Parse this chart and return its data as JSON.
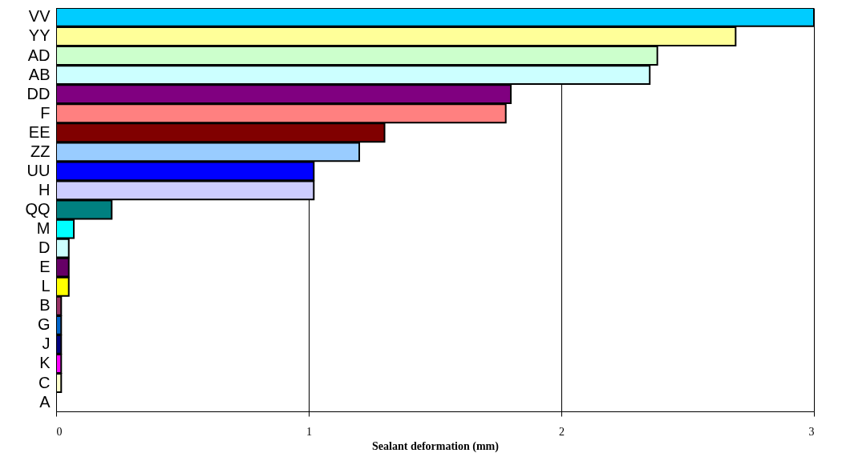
{
  "chart_data": {
    "type": "bar",
    "orientation": "horizontal",
    "xlabel": "Sealant deformation (mm)",
    "categories": [
      "VV",
      "YY",
      "AD",
      "AB",
      "DD",
      "F",
      "EE",
      "ZZ",
      "UU",
      "H",
      "QQ",
      "M",
      "D",
      "E",
      "L",
      "B",
      "G",
      "J",
      "K",
      "C",
      "A"
    ],
    "values": [
      3.0,
      2.69,
      2.38,
      2.35,
      1.8,
      1.78,
      1.3,
      1.2,
      1.02,
      1.02,
      0.22,
      0.07,
      0.05,
      0.05,
      0.05,
      0.02,
      0.02,
      0.02,
      0.02,
      0.02,
      0
    ],
    "colors": [
      "#00ccff",
      "#ffff99",
      "#ccffcc",
      "#ccffff",
      "#800080",
      "#ff8080",
      "#800000",
      "#99ccff",
      "#0000ff",
      "#ccccff",
      "#008080",
      "#00ffff",
      "#ccffff",
      "#660066",
      "#ffff00",
      "#993366",
      "#0066cc",
      "#000080",
      "#ff00ff",
      "#ffffcc",
      "#9999ff"
    ],
    "xlim": [
      0,
      3
    ],
    "xticks": [
      0,
      1,
      2,
      3
    ],
    "grid": "x"
  }
}
